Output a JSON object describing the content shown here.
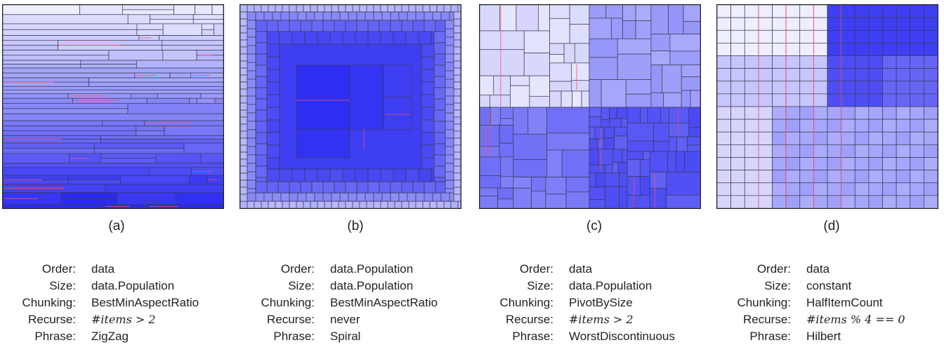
{
  "colors": {
    "light": "#f2f2ff",
    "dark": "#2a2af2",
    "edge": "#3a3a55",
    "highlight": "#ff4d6d"
  },
  "panels": [
    {
      "caption": "(a)",
      "layout": "zigzag",
      "spec": [
        {
          "key": "Order:",
          "value": "data"
        },
        {
          "key": "Size:",
          "value": "data.Population"
        },
        {
          "key": "Chunking:",
          "value": "BestMinAspectRatio"
        },
        {
          "key": "Recurse:",
          "value": "#items > 2",
          "math": true
        },
        {
          "key": "Phrase:",
          "value": "ZigZag"
        }
      ]
    },
    {
      "caption": "(b)",
      "layout": "spiral",
      "spec": [
        {
          "key": "Order:",
          "value": "data.Population"
        },
        {
          "key": "Size:",
          "value": "data.Population"
        },
        {
          "key": "Chunking:",
          "value": "BestMinAspectRatio"
        },
        {
          "key": "Recurse:",
          "value": "never"
        },
        {
          "key": "Phrase:",
          "value": "Spiral"
        }
      ]
    },
    {
      "caption": "(c)",
      "layout": "worst-discontinuous",
      "spec": [
        {
          "key": "Order:",
          "value": "data"
        },
        {
          "key": "Size:",
          "value": "data.Population"
        },
        {
          "key": "Chunking:",
          "value": "PivotBySize"
        },
        {
          "key": "Recurse:",
          "value": "#items > 2",
          "math": true
        },
        {
          "key": "Phrase:",
          "value": "WorstDiscontinuous"
        }
      ]
    },
    {
      "caption": "(d)",
      "layout": "hilbert",
      "spec": [
        {
          "key": "Order:",
          "value": "data"
        },
        {
          "key": "Size:",
          "value": "constant"
        },
        {
          "key": "Chunking:",
          "value": "HalfItemCount"
        },
        {
          "key": "Recurse:",
          "value": "#items % 4 == 0",
          "math": true
        },
        {
          "key": "Phrase:",
          "value": "Hilbert"
        }
      ]
    }
  ]
}
